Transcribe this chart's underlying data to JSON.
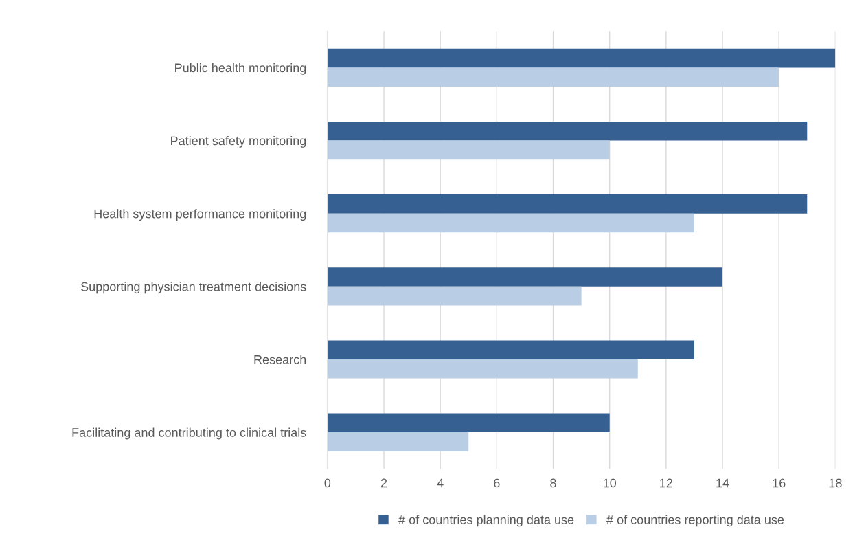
{
  "chart_data": {
    "type": "bar",
    "orientation": "horizontal",
    "categories": [
      "Public health monitoring",
      "Patient safety monitoring",
      "Health system performance monitoring",
      "Supporting physician treatment decisions",
      "Research",
      "Facilitating and contributing to clinical trials"
    ],
    "series": [
      {
        "name": "# of countries planning data use",
        "color": "#366092",
        "values": [
          18,
          17,
          17,
          14,
          13,
          10
        ]
      },
      {
        "name": "# of countries reporting data use",
        "color": "#b9cde5",
        "values": [
          16,
          10,
          13,
          9,
          11,
          5
        ]
      }
    ],
    "xlim": [
      0,
      18
    ],
    "xticks": [
      0,
      2,
      4,
      6,
      8,
      10,
      12,
      14,
      16,
      18
    ],
    "grid": "x",
    "legend": "bottom"
  }
}
